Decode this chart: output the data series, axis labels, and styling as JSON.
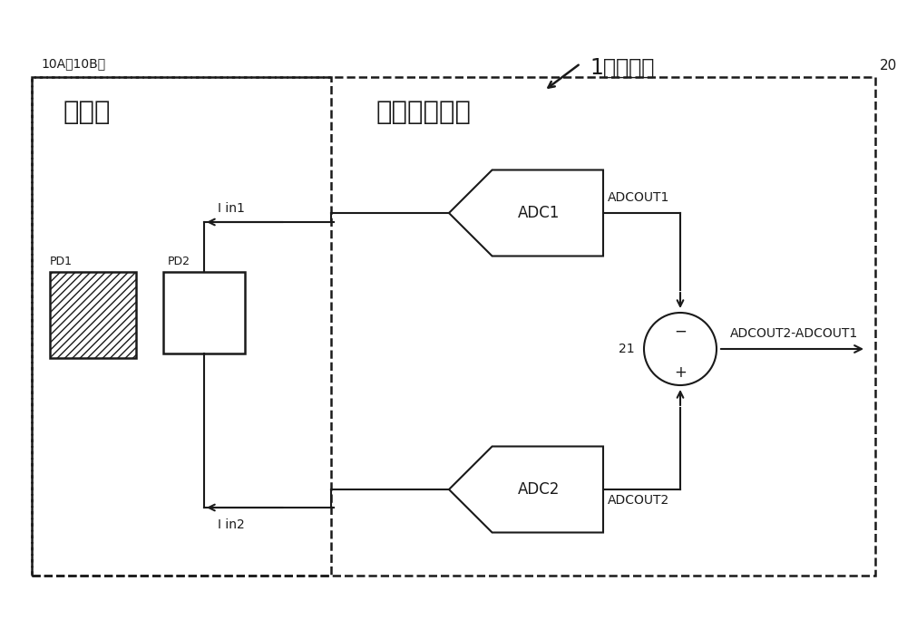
{
  "bg_color": "#ffffff",
  "line_color": "#1a1a1a",
  "title_label": "1：受光部",
  "outer_box_label": "20",
  "left_box_label": "10A（10B）",
  "left_box_title": "受光器",
  "right_box_title": "传感器电路部",
  "pd1_label": "PD1",
  "pd2_label": "PD2",
  "adc1_label": "ADC1",
  "adc2_label": "ADC2",
  "adcout1_label": "ADCOUT1",
  "adcout2_label": "ADCOUT2",
  "diff_label": "ADCOUT2-ADCOUT1",
  "node21_label": "21",
  "iin1_label": "I in1",
  "iin2_label": "I in2",
  "minus_label": "−",
  "plus_label": "+"
}
